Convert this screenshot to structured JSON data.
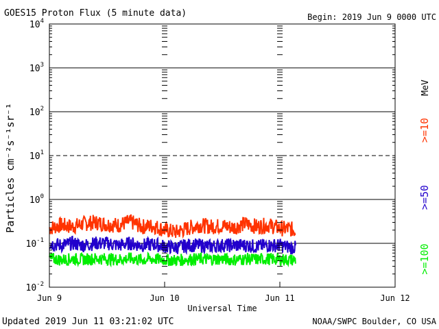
{
  "header": {
    "title": "GOES15 Proton Flux (5 minute data)",
    "begin": "Begin: 2019 Jun 9 0000 UTC"
  },
  "footer": {
    "updated": "Updated 2019 Jun 11 03:21:02 UTC",
    "source": "NOAA/SWPC Boulder, CO USA"
  },
  "chart_data": {
    "type": "line",
    "title": "GOES15 Proton Flux (5 minute data)",
    "xlabel": "Universal Time",
    "ylabel": "Particles cm⁻²s⁻¹sr⁻¹",
    "y_scale": "log",
    "ylim": [
      0.01,
      10000
    ],
    "x_unit": "days since 2019 Jun 9 0000 UTC",
    "xlim": [
      0,
      3
    ],
    "x_ticks": [
      {
        "x": 0,
        "label": "Jun 9"
      },
      {
        "x": 1,
        "label": "Jun 10"
      },
      {
        "x": 2,
        "label": "Jun 11"
      },
      {
        "x": 3,
        "label": "Jun 12"
      }
    ],
    "y_ticks": [
      {
        "exp": -2,
        "base": "10",
        "sup": "-2"
      },
      {
        "exp": -1,
        "base": "10",
        "sup": "-1"
      },
      {
        "exp": 0,
        "base": "10",
        "sup": "0"
      },
      {
        "exp": 1,
        "base": "10",
        "sup": "1"
      },
      {
        "exp": 2,
        "base": "10",
        "sup": "2"
      },
      {
        "exp": 3,
        "base": "10",
        "sup": "3"
      },
      {
        "exp": 4,
        "base": "10",
        "sup": "4"
      }
    ],
    "threshold_line": 10,
    "unit_label": "MeV",
    "series": [
      {
        "name": ">=10",
        "color": "#ff3300",
        "x": [
          0.0,
          0.1,
          0.2,
          0.3,
          0.4,
          0.5,
          0.6,
          0.7,
          0.8,
          0.9,
          1.0,
          1.1,
          1.2,
          1.3,
          1.4,
          1.5,
          1.6,
          1.7,
          1.8,
          1.9,
          2.0,
          2.1,
          2.14
        ],
        "values": [
          0.22,
          0.26,
          0.24,
          0.28,
          0.3,
          0.27,
          0.26,
          0.31,
          0.24,
          0.25,
          0.2,
          0.18,
          0.22,
          0.26,
          0.24,
          0.25,
          0.23,
          0.28,
          0.24,
          0.26,
          0.22,
          0.21,
          0.19
        ]
      },
      {
        "name": ">=50",
        "color": "#2200cc",
        "x": [
          0.0,
          0.1,
          0.2,
          0.3,
          0.4,
          0.5,
          0.6,
          0.7,
          0.8,
          0.9,
          1.0,
          1.1,
          1.2,
          1.3,
          1.4,
          1.5,
          1.6,
          1.7,
          1.8,
          1.9,
          2.0,
          2.1,
          2.14
        ],
        "values": [
          0.1,
          0.09,
          0.1,
          0.09,
          0.1,
          0.1,
          0.09,
          0.1,
          0.09,
          0.095,
          0.085,
          0.08,
          0.09,
          0.09,
          0.085,
          0.09,
          0.09,
          0.09,
          0.085,
          0.09,
          0.09,
          0.08,
          0.08
        ]
      },
      {
        "name": ">=100",
        "color": "#00ee00",
        "x": [
          0.0,
          0.1,
          0.2,
          0.3,
          0.4,
          0.5,
          0.6,
          0.7,
          0.8,
          0.9,
          1.0,
          1.1,
          1.2,
          1.3,
          1.4,
          1.5,
          1.6,
          1.7,
          1.8,
          1.9,
          2.0,
          2.1,
          2.14
        ],
        "values": [
          0.045,
          0.042,
          0.044,
          0.043,
          0.045,
          0.044,
          0.043,
          0.045,
          0.042,
          0.044,
          0.042,
          0.041,
          0.043,
          0.044,
          0.043,
          0.044,
          0.042,
          0.044,
          0.043,
          0.044,
          0.043,
          0.042,
          0.042
        ]
      }
    ]
  }
}
